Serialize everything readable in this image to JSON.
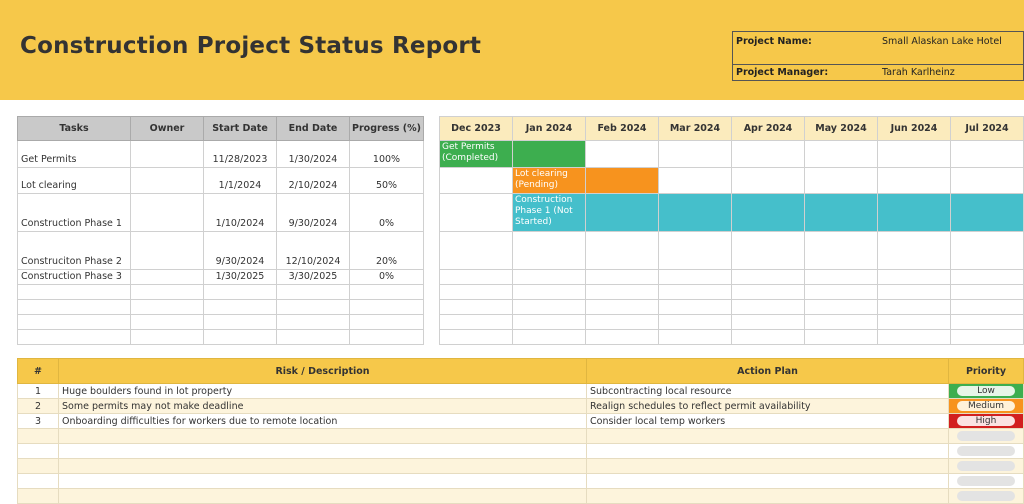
{
  "header": {
    "title": "Construction Project Status Report",
    "project_name_label": "Project Name:",
    "project_name_value": "Small Alaskan Lake Hotel",
    "project_manager_label": "Project Manager:",
    "project_manager_value": "Tarah Karlheinz",
    "banner_color": "#f6c84a"
  },
  "tasks": {
    "columns": [
      "Tasks",
      "Owner",
      "Start Date",
      "End Date",
      "Progress (%)"
    ],
    "rows": [
      {
        "task": "Get Permits",
        "owner": "",
        "start": "11/28/2023",
        "end": "1/30/2024",
        "progress": "100%"
      },
      {
        "task": "Lot clearing",
        "owner": "",
        "start": "1/1/2024",
        "end": "2/10/2024",
        "progress": "50%"
      },
      {
        "task": "Construction Phase 1",
        "owner": "",
        "start": "1/10/2024",
        "end": "9/30/2024",
        "progress": "0%"
      },
      {
        "task": "Construciton Phase 2",
        "owner": "",
        "start": "9/30/2024",
        "end": "12/10/2024",
        "progress": "20%"
      },
      {
        "task": "Construction Phase 3",
        "owner": "",
        "start": "1/30/2025",
        "end": "3/30/2025",
        "progress": "0%"
      }
    ]
  },
  "gantt": {
    "months": [
      "Dec 2023",
      "Jan 2024",
      "Feb 2024",
      "Mar 2024",
      "Apr 2024",
      "May 2024",
      "Jun 2024",
      "Jul 2024"
    ],
    "bars": [
      {
        "label": "Get Permits (Completed)",
        "color": "#3dae4f"
      },
      {
        "label": "Lot clearing (Pending)",
        "color": "#f7931e"
      },
      {
        "label": "Construction Phase 1 (Not Started)",
        "color": "#45bfcb"
      }
    ]
  },
  "risks": {
    "columns": [
      "#",
      "Risk / Description",
      "Action Plan",
      "Priority"
    ],
    "rows": [
      {
        "num": "1",
        "risk": "Huge boulders found in lot property",
        "action": "Subcontracting local resource",
        "priority": "Low",
        "priority_color": "#3dae4f"
      },
      {
        "num": "2",
        "risk": "Some permits may not make deadline",
        "action": "Realign schedules to reflect permit availability",
        "priority": "Medium",
        "priority_color": "#f7931e"
      },
      {
        "num": "3",
        "risk": "Onboarding difficulties for workers due to remote location",
        "action": "Consider local temp workers",
        "priority": "High",
        "priority_color": "#d21f1f"
      }
    ]
  }
}
